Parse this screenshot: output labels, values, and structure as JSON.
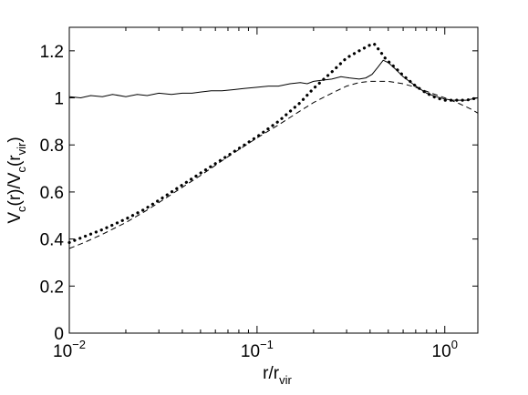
{
  "chart_data": {
    "type": "line",
    "title": "",
    "xlabel": {
      "main": "r/r",
      "sub": "vir"
    },
    "ylabel": {
      "p1": "V",
      "s1": "c",
      "p2": "(r)/V",
      "s2": "c",
      "p3": "(r",
      "s3": "vir",
      "p4": ")"
    },
    "x_scale": "log",
    "xlim": [
      0.01,
      1.5
    ],
    "ylim": [
      0,
      1.3
    ],
    "grid": false,
    "x_ticks": [
      {
        "value": 0.01,
        "base": "10",
        "exp": "−2"
      },
      {
        "value": 0.1,
        "base": "10",
        "exp": "−1"
      },
      {
        "value": 1,
        "base": "10",
        "exp": "0"
      }
    ],
    "y_ticks": [
      {
        "value": 0,
        "label": "0"
      },
      {
        "value": 0.2,
        "label": "0.2"
      },
      {
        "value": 0.4,
        "label": "0.4"
      },
      {
        "value": 0.6,
        "label": "0.6"
      },
      {
        "value": 0.8,
        "label": "0.8"
      },
      {
        "value": 1.0,
        "label": "1"
      },
      {
        "value": 1.2,
        "label": "1.2"
      }
    ],
    "series": [
      {
        "style": "solid",
        "x": [
          0.01,
          0.0115,
          0.013,
          0.015,
          0.017,
          0.02,
          0.023,
          0.026,
          0.03,
          0.035,
          0.04,
          0.045,
          0.05,
          0.057,
          0.065,
          0.075,
          0.085,
          0.1,
          0.115,
          0.13,
          0.15,
          0.17,
          0.185,
          0.2,
          0.22,
          0.25,
          0.28,
          0.31,
          0.35,
          0.38,
          0.41,
          0.44,
          0.47,
          0.5,
          0.55,
          0.6,
          0.7,
          0.8,
          0.9,
          1.0,
          1.1,
          1.2,
          1.3,
          1.4,
          1.5
        ],
        "y": [
          1.005,
          1.0,
          1.01,
          1.005,
          1.015,
          1.005,
          1.015,
          1.01,
          1.02,
          1.015,
          1.02,
          1.02,
          1.025,
          1.03,
          1.03,
          1.035,
          1.04,
          1.045,
          1.05,
          1.05,
          1.06,
          1.065,
          1.06,
          1.07,
          1.075,
          1.08,
          1.09,
          1.085,
          1.08,
          1.085,
          1.1,
          1.13,
          1.16,
          1.15,
          1.12,
          1.09,
          1.05,
          1.02,
          1.005,
          0.995,
          0.99,
          0.99,
          0.99,
          0.995,
          1.0
        ]
      },
      {
        "style": "dashed",
        "x": [
          0.01,
          0.012,
          0.015,
          0.02,
          0.025,
          0.03,
          0.04,
          0.05,
          0.07,
          0.1,
          0.13,
          0.17,
          0.2,
          0.25,
          0.3,
          0.35,
          0.4,
          0.5,
          0.6,
          0.7,
          0.85,
          1.0,
          1.2,
          1.4,
          1.5
        ],
        "y": [
          0.36,
          0.385,
          0.42,
          0.47,
          0.515,
          0.555,
          0.62,
          0.67,
          0.75,
          0.83,
          0.885,
          0.945,
          0.98,
          1.02,
          1.05,
          1.065,
          1.07,
          1.07,
          1.06,
          1.045,
          1.02,
          1.0,
          0.975,
          0.95,
          0.935
        ]
      },
      {
        "style": "dotted",
        "x": [
          0.01,
          0.012,
          0.015,
          0.02,
          0.025,
          0.03,
          0.04,
          0.05,
          0.07,
          0.1,
          0.13,
          0.17,
          0.2,
          0.25,
          0.3,
          0.35,
          0.4,
          0.42,
          0.45,
          0.48,
          0.5,
          0.55,
          0.6,
          0.7,
          0.8,
          0.9,
          1.0,
          1.1,
          1.2,
          1.3,
          1.4,
          1.5
        ],
        "y": [
          0.385,
          0.41,
          0.44,
          0.485,
          0.525,
          0.565,
          0.63,
          0.68,
          0.755,
          0.835,
          0.9,
          0.98,
          1.04,
          1.11,
          1.17,
          1.2,
          1.225,
          1.23,
          1.2,
          1.17,
          1.155,
          1.125,
          1.095,
          1.05,
          1.02,
          1.0,
          0.99,
          0.99,
          0.99,
          0.99,
          0.995,
          1.0
        ]
      }
    ]
  }
}
